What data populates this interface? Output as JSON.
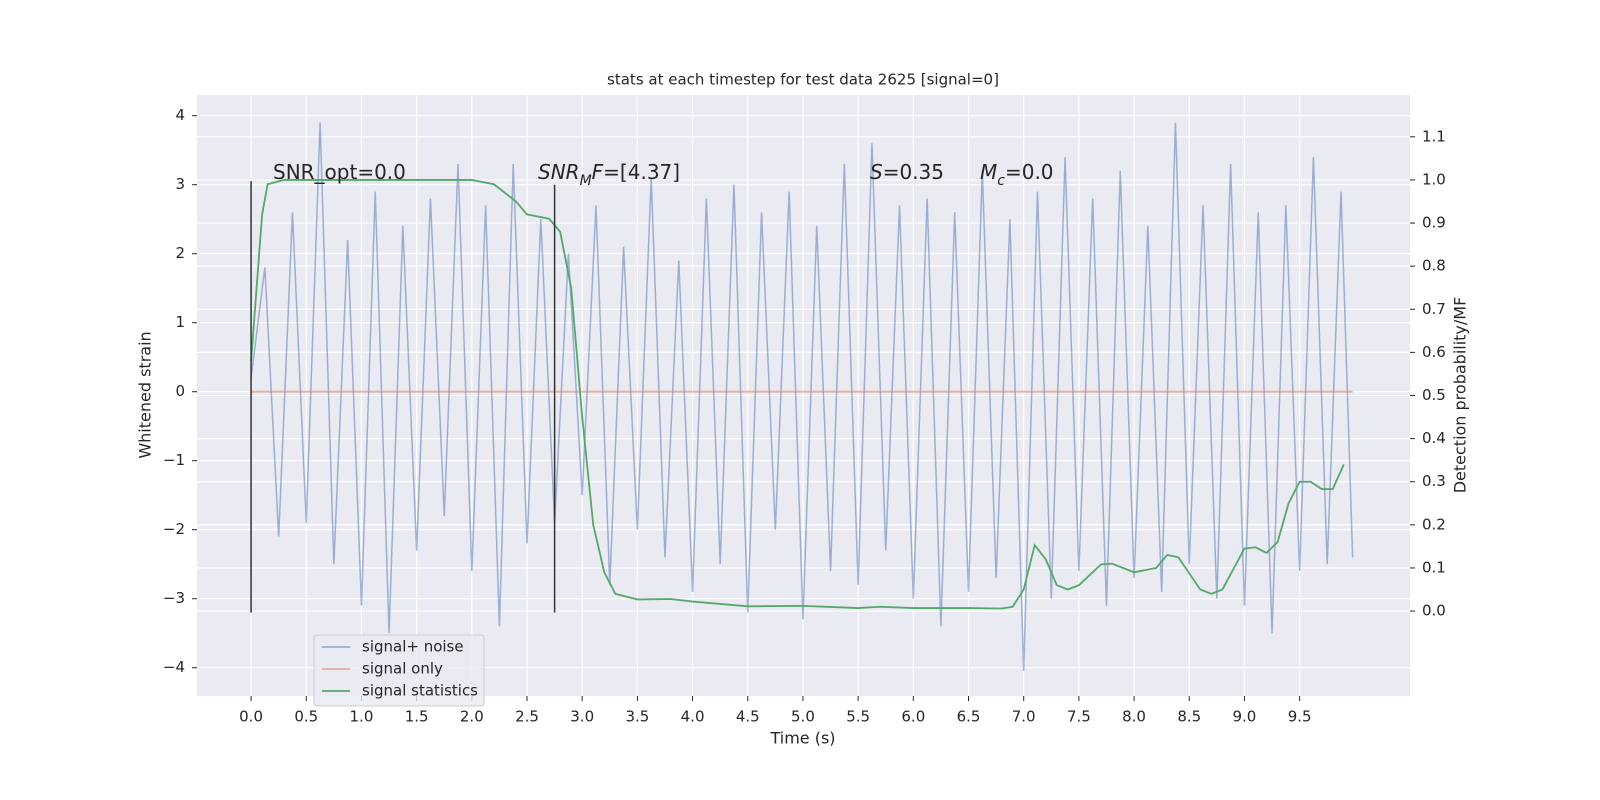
{
  "chart_data": {
    "type": "line",
    "title": "stats at each timestep for test data 2625 [signal=0]",
    "xlabel": "Time (s)",
    "ylabel": "Whitened strain",
    "y2label": "Detection probability/MF",
    "xlim": [
      -0.49,
      10.5
    ],
    "ylim": [
      -4.41,
      4.3
    ],
    "y2lim": [
      -0.197,
      1.197
    ],
    "xticks": [
      {
        "value": 0,
        "label": "0.0"
      },
      {
        "value": 0.5,
        "label": "0.5"
      },
      {
        "value": 1,
        "label": "1.0"
      },
      {
        "value": 1.5,
        "label": "1.5"
      },
      {
        "value": 2,
        "label": "2.0"
      },
      {
        "value": 2.5,
        "label": "2.5"
      },
      {
        "value": 3,
        "label": "3.0"
      },
      {
        "value": 3.5,
        "label": "3.5"
      },
      {
        "value": 4,
        "label": "4.0"
      },
      {
        "value": 4.5,
        "label": "4.5"
      },
      {
        "value": 5,
        "label": "5.0"
      },
      {
        "value": 5.5,
        "label": "5.5"
      },
      {
        "value": 6,
        "label": "6.0"
      },
      {
        "value": 6.5,
        "label": "6.5"
      },
      {
        "value": 7,
        "label": "7.0"
      },
      {
        "value": 7.5,
        "label": "7.5"
      },
      {
        "value": 8,
        "label": "8.0"
      },
      {
        "value": 8.5,
        "label": "8.5"
      },
      {
        "value": 9,
        "label": "9.0"
      },
      {
        "value": 9.5,
        "label": "9.5"
      }
    ],
    "yticks": [
      {
        "value": -4,
        "label": "−4"
      },
      {
        "value": -3,
        "label": "−3"
      },
      {
        "value": -2,
        "label": "−2"
      },
      {
        "value": -1,
        "label": "−1"
      },
      0,
      1,
      2,
      3,
      4
    ],
    "y2ticks": [
      {
        "value": 0,
        "label": "0.0"
      },
      0.1,
      0.2,
      0.3,
      0.4,
      0.5,
      0.6,
      0.7,
      0.8,
      0.9,
      {
        "value": 1,
        "label": "1.0"
      },
      1.1
    ],
    "grid": true,
    "legend": "lower left",
    "series": [
      {
        "name": "signal+ noise",
        "color": "#4c72b0",
        "alpha": 0.5,
        "x": [
          0,
          0.125,
          0.25,
          0.375,
          0.5,
          0.625,
          0.75,
          0.875,
          1,
          1.125,
          1.25,
          1.375,
          1.5,
          1.625,
          1.75,
          1.875,
          2,
          2.125,
          2.25,
          2.375,
          2.5,
          2.625,
          2.75,
          2.875,
          3,
          3.125,
          3.25,
          3.375,
          3.5,
          3.625,
          3.75,
          3.875,
          4,
          4.125,
          4.25,
          4.375,
          4.5,
          4.625,
          4.75,
          4.875,
          5,
          5.125,
          5.25,
          5.375,
          5.5,
          5.625,
          5.75,
          5.875,
          6,
          6.125,
          6.25,
          6.375,
          6.5,
          6.625,
          6.75,
          6.875,
          7,
          7.125,
          7.25,
          7.375,
          7.5,
          7.625,
          7.75,
          7.875,
          8,
          8.125,
          8.25,
          8.375,
          8.5,
          8.625,
          8.75,
          8.875,
          9,
          9.125,
          9.25,
          9.375,
          9.5,
          9.625,
          9.75,
          9.875,
          9.98
        ],
        "values": [
          0.2,
          1.8,
          -2.1,
          2.6,
          -1.9,
          3.9,
          -2.5,
          2.2,
          -3.1,
          2.9,
          -3.5,
          2.4,
          -2.3,
          2.8,
          -1.8,
          3.3,
          -2.6,
          2.7,
          -3.4,
          3.3,
          -2.2,
          2.5,
          -1.9,
          2.0,
          -1.5,
          2.7,
          -2.8,
          2.1,
          -2.0,
          3.1,
          -2.4,
          1.9,
          -2.9,
          2.8,
          -2.5,
          3.0,
          -3.2,
          2.6,
          -2.0,
          2.9,
          -3.3,
          2.4,
          -2.6,
          3.3,
          -2.8,
          3.6,
          -2.3,
          2.7,
          -3.0,
          2.8,
          -3.4,
          2.6,
          -2.9,
          3.2,
          -2.7,
          2.5,
          -4.05,
          2.9,
          -3.0,
          3.4,
          -2.6,
          2.8,
          -3.1,
          3.2,
          -2.7,
          2.4,
          -2.9,
          3.9,
          -2.5,
          2.7,
          -3.0,
          3.3,
          -3.1,
          2.6,
          -3.5,
          2.7,
          -2.6,
          3.4,
          -2.5,
          2.9,
          -2.4
        ]
      },
      {
        "name": "signal only",
        "color": "#dd8452",
        "alpha": 0.6,
        "x": [
          0,
          9.98
        ],
        "values": [
          0,
          0
        ]
      },
      {
        "name": "signal statistics",
        "color": "#55a868",
        "alpha": 1,
        "axis": "y2",
        "x": [
          0,
          0.1,
          0.15,
          0.3,
          1,
          2,
          2.2,
          2.4,
          2.5,
          2.7,
          2.8,
          2.9,
          3,
          3.1,
          3.2,
          3.3,
          3.5,
          3.8,
          4,
          4.5,
          5,
          5.5,
          5.7,
          6,
          6.5,
          6.8,
          6.9,
          7,
          7.1,
          7.2,
          7.3,
          7.4,
          7.5,
          7.7,
          7.8,
          8,
          8.2,
          8.3,
          8.4,
          8.6,
          8.7,
          8.8,
          9,
          9.1,
          9.2,
          9.3,
          9.4,
          9.5,
          9.6,
          9.7,
          9.8,
          9.9
        ],
        "values": [
          0.58,
          0.92,
          0.99,
          1,
          1,
          1,
          0.99,
          0.95,
          0.92,
          0.91,
          0.88,
          0.75,
          0.45,
          0.2,
          0.09,
          0.04,
          0.027,
          0.028,
          0.022,
          0.011,
          0.012,
          0.007,
          0.01,
          0.007,
          0.007,
          0.006,
          0.01,
          0.05,
          0.153,
          0.12,
          0.06,
          0.05,
          0.06,
          0.108,
          0.11,
          0.09,
          0.1,
          0.13,
          0.125,
          0.05,
          0.04,
          0.05,
          0.145,
          0.148,
          0.135,
          0.16,
          0.25,
          0.3,
          0.3,
          0.283,
          0.283,
          0.34
        ]
      }
    ],
    "vlines": [
      {
        "x": 0,
        "ymin": -3.2,
        "ymax": 3.05,
        "color": "#333333"
      },
      {
        "x": 2.75,
        "ymin": -3.2,
        "ymax": 3.0,
        "color": "#333333"
      }
    ],
    "annotations": [
      {
        "parts": [
          {
            "text": "SNR_opt=0.0"
          }
        ]
      },
      {
        "parts": [
          {
            "text": "SNR",
            "italic": true
          },
          {
            "text": "M",
            "italic": true,
            "sub": true
          },
          {
            "text": "F",
            "italic": true
          },
          {
            "text": "=[4.37]"
          }
        ]
      },
      {
        "parts": [
          {
            "text": "S",
            "italic": true
          },
          {
            "text": "=0.35"
          }
        ]
      },
      {
        "parts": [
          {
            "text": "M",
            "italic": true
          },
          {
            "text": "c",
            "italic": true,
            "sub": true
          },
          {
            "text": "=0.0"
          }
        ]
      }
    ]
  }
}
